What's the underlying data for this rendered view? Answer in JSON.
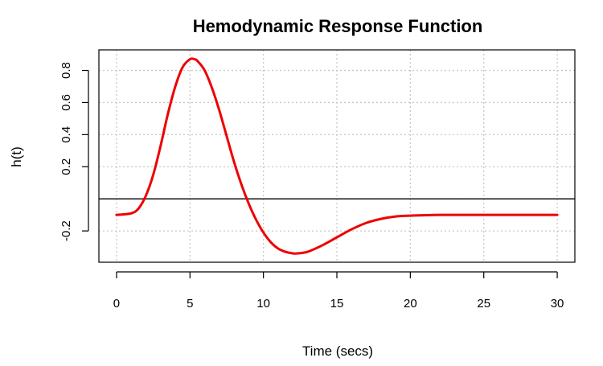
{
  "chart_data": {
    "type": "line",
    "title": "Hemodynamic Response Function",
    "xlabel": "Time (secs)",
    "ylabel": "h(t)",
    "xlim": [
      0,
      30
    ],
    "ylim": [
      -0.35,
      0.9
    ],
    "x_ticks": [
      0,
      5,
      10,
      15,
      20,
      25,
      30
    ],
    "x_tick_labels": [
      "0",
      "5",
      "10",
      "15",
      "20",
      "25",
      "30"
    ],
    "y_ticks": [
      -0.2,
      0.2,
      0.4,
      0.6,
      0.8
    ],
    "y_tick_labels": [
      "-0.2",
      "0.2",
      "0.4",
      "0.6",
      "0.8"
    ],
    "grid": true,
    "grid_x": [
      0,
      5,
      10,
      15,
      20,
      25,
      30
    ],
    "grid_y": [
      -0.2,
      0,
      0.2,
      0.4,
      0.6,
      0.8
    ],
    "reference_line_y": 0,
    "series": [
      {
        "color": "#ee0000",
        "x": [
          0,
          1,
          1.5,
          2,
          2.5,
          3,
          3.5,
          4,
          4.5,
          5,
          5.3,
          5.5,
          6,
          6.5,
          7,
          7.5,
          8,
          8.5,
          9,
          9.5,
          10,
          10.5,
          11,
          11.5,
          12,
          12.3,
          13,
          14,
          15,
          16,
          17,
          18,
          19,
          20,
          22,
          24,
          26,
          28,
          30
        ],
        "y": [
          -0.1,
          -0.09,
          -0.06,
          0.02,
          0.15,
          0.33,
          0.53,
          0.7,
          0.82,
          0.87,
          0.87,
          0.86,
          0.8,
          0.69,
          0.55,
          0.39,
          0.23,
          0.09,
          -0.03,
          -0.13,
          -0.21,
          -0.27,
          -0.31,
          -0.33,
          -0.34,
          -0.34,
          -0.33,
          -0.29,
          -0.24,
          -0.19,
          -0.15,
          -0.125,
          -0.11,
          -0.105,
          -0.1,
          -0.1,
          -0.1,
          -0.1,
          -0.1
        ]
      }
    ]
  }
}
